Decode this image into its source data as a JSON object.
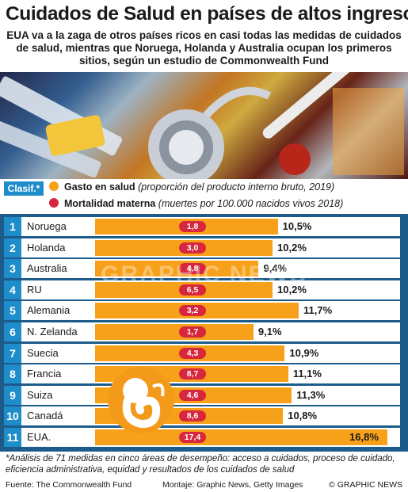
{
  "header": {
    "title": "Cuidados de Salud en países de altos ingresos",
    "subtitle": "EUA va a la zaga de otros países ricos en casi todas las medidas de cuidados de salud, mientras que Noruega, Holanda y Australia ocupan los primeros sitios, según un estudio de Commonwealth Fund"
  },
  "legend": {
    "clasif": "Clasif.*",
    "spend_label": "Gasto en salud",
    "spend_note": "(proporción del producto interno bruto, 2019)",
    "mort_label": "Mortalidad materna",
    "mort_note": "(muertes por 100.000 nacidos vivos 2018)"
  },
  "colors": {
    "bar": "#f7a11a",
    "pill": "#d7263d",
    "rank": "#1f8dc9",
    "panel": "#1d5c8a"
  },
  "chart_data": {
    "type": "bar",
    "categories": [
      "Noruega",
      "Holanda",
      "Australia",
      "RU",
      "Alemania",
      "N. Zelanda",
      "Suecia",
      "Francia",
      "Suiza",
      "Canadá",
      "EUA."
    ],
    "ranks": [
      "1",
      "2",
      "3",
      "4",
      "5",
      "6",
      "7",
      "8",
      "9",
      "10",
      "11"
    ],
    "series": [
      {
        "name": "Gasto en salud",
        "values": [
          10.5,
          10.2,
          9.4,
          10.2,
          11.7,
          9.1,
          10.9,
          11.1,
          11.3,
          10.8,
          16.8
        ]
      },
      {
        "name": "Mortalidad materna",
        "values": [
          1.8,
          3.0,
          4.8,
          6.5,
          3.2,
          1.7,
          4.3,
          8.7,
          4.6,
          8.6,
          17.4
        ]
      }
    ],
    "value_labels": [
      "10,5%",
      "10,2%",
      "9,4%",
      "10,2%",
      "11,7%",
      "9,1%",
      "10,9%",
      "11,1%",
      "11,3%",
      "10,8%",
      "16,8%"
    ],
    "pill_labels": [
      "1,8",
      "3,0",
      "4,8",
      "6,5",
      "3,2",
      "1,7",
      "4,3",
      "8,7",
      "4,6",
      "8,6",
      "17,4"
    ],
    "xlim": [
      0,
      17.3
    ]
  },
  "watermark": "GRAPHIC NEWS",
  "footnote": "*Análisis de 71 medidas en cinco áreas de desempeño: acceso a cuidados, proceso de cuidado, eficiencia administrativa, equidad y resultados de los cuidados de salud",
  "footer": {
    "source": "Fuente: The Commonwealth Fund",
    "montage": "Montaje: Graphic News, Getty Images",
    "credit": "© GRAPHIC NEWS"
  }
}
